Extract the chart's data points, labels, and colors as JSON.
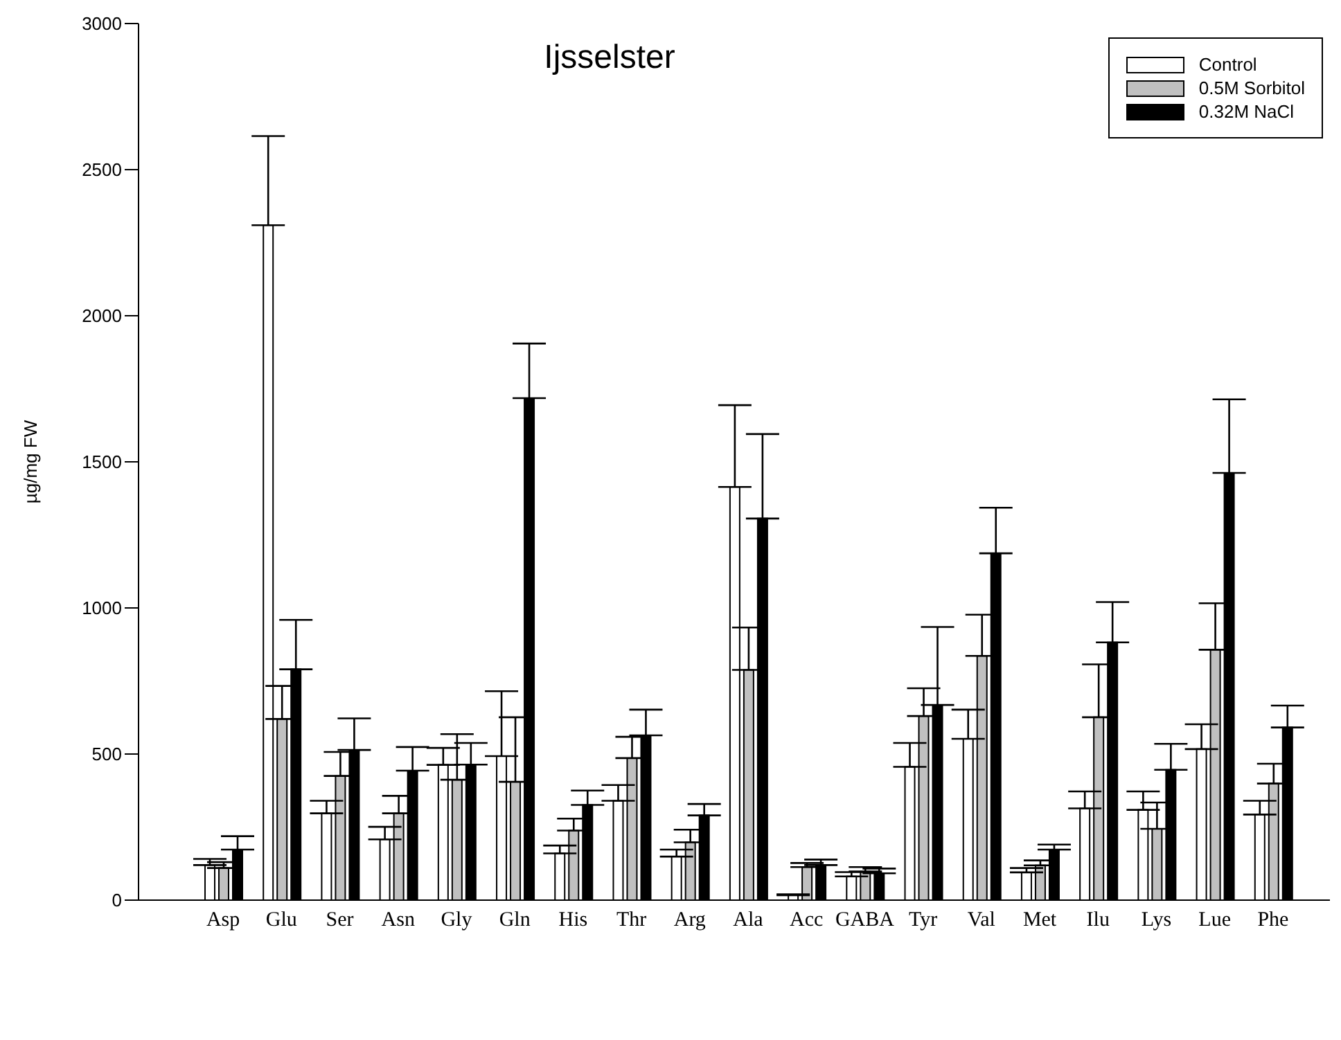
{
  "chart_data": {
    "type": "bar",
    "title": "Ijsselster",
    "ylabel": "µg/mg FW",
    "categories": [
      "Asp",
      "Glu",
      "Ser",
      "Asn",
      "Gly",
      "Gln",
      "His",
      "Thr",
      "Arg",
      "Ala",
      "Acc",
      "GABA",
      "Tyr",
      "Val",
      "Met",
      "Ilu",
      "Lys",
      "Lue",
      "Phe"
    ],
    "series": [
      {
        "name": "Control",
        "color": "#ffffff",
        "values": [
          120,
          2310,
          297,
          208,
          463,
          493,
          160,
          340,
          149,
          1414,
          17,
          81,
          456,
          552,
          95,
          314,
          309,
          517,
          293
        ],
        "errors": [
          [
            120,
            141
          ],
          [
            2310,
            2615
          ],
          [
            297,
            340
          ],
          [
            208,
            251
          ],
          [
            463,
            521
          ],
          [
            493,
            715
          ],
          [
            160,
            187
          ],
          [
            340,
            394
          ],
          [
            149,
            173
          ],
          [
            1414,
            1694
          ],
          [
            17,
            20
          ],
          [
            81,
            96
          ],
          [
            456,
            538
          ],
          [
            552,
            652
          ],
          [
            95,
            110
          ],
          [
            314,
            372
          ],
          [
            309,
            372
          ],
          [
            517,
            602
          ],
          [
            293,
            340
          ]
        ]
      },
      {
        "name": "0.5M Sorbitol",
        "color": "#c0c0c0",
        "values": [
          110,
          620,
          425,
          297,
          412,
          405,
          238,
          486,
          198,
          788,
          113,
          98,
          630,
          836,
          119,
          626,
          244,
          857,
          399
        ],
        "errors": [
          [
            110,
            130
          ],
          [
            620,
            733
          ],
          [
            425,
            507
          ],
          [
            297,
            357
          ],
          [
            412,
            568
          ],
          [
            405,
            626
          ],
          [
            238,
            279
          ],
          [
            486,
            559
          ],
          [
            198,
            241
          ],
          [
            788,
            933
          ],
          [
            113,
            127
          ],
          [
            98,
            113
          ],
          [
            630,
            725
          ],
          [
            836,
            977
          ],
          [
            119,
            136
          ],
          [
            626,
            807
          ],
          [
            244,
            334
          ],
          [
            857,
            1016
          ],
          [
            399,
            467
          ]
        ]
      },
      {
        "name": "0.32M NaCl",
        "color": "#000000",
        "values": [
          173,
          790,
          514,
          443,
          464,
          1718,
          326,
          564,
          290,
          1306,
          120,
          92,
          668,
          1187,
          173,
          882,
          446,
          1462,
          591
        ],
        "errors": [
          [
            173,
            219
          ],
          [
            790,
            959
          ],
          [
            514,
            622
          ],
          [
            443,
            524
          ],
          [
            464,
            538
          ],
          [
            1718,
            1905
          ],
          [
            326,
            375
          ],
          [
            564,
            652
          ],
          [
            290,
            329
          ],
          [
            1306,
            1595
          ],
          [
            120,
            139
          ],
          [
            92,
            108
          ],
          [
            668,
            935
          ],
          [
            1187,
            1343
          ],
          [
            173,
            190
          ],
          [
            882,
            1020
          ],
          [
            446,
            535
          ],
          [
            1462,
            1714
          ],
          [
            591,
            666
          ]
        ]
      }
    ],
    "ylim": [
      0,
      3000
    ],
    "yticks": [
      0,
      500,
      1000,
      1500,
      2000,
      2500,
      3000
    ],
    "grid": false,
    "legend": "top right"
  }
}
